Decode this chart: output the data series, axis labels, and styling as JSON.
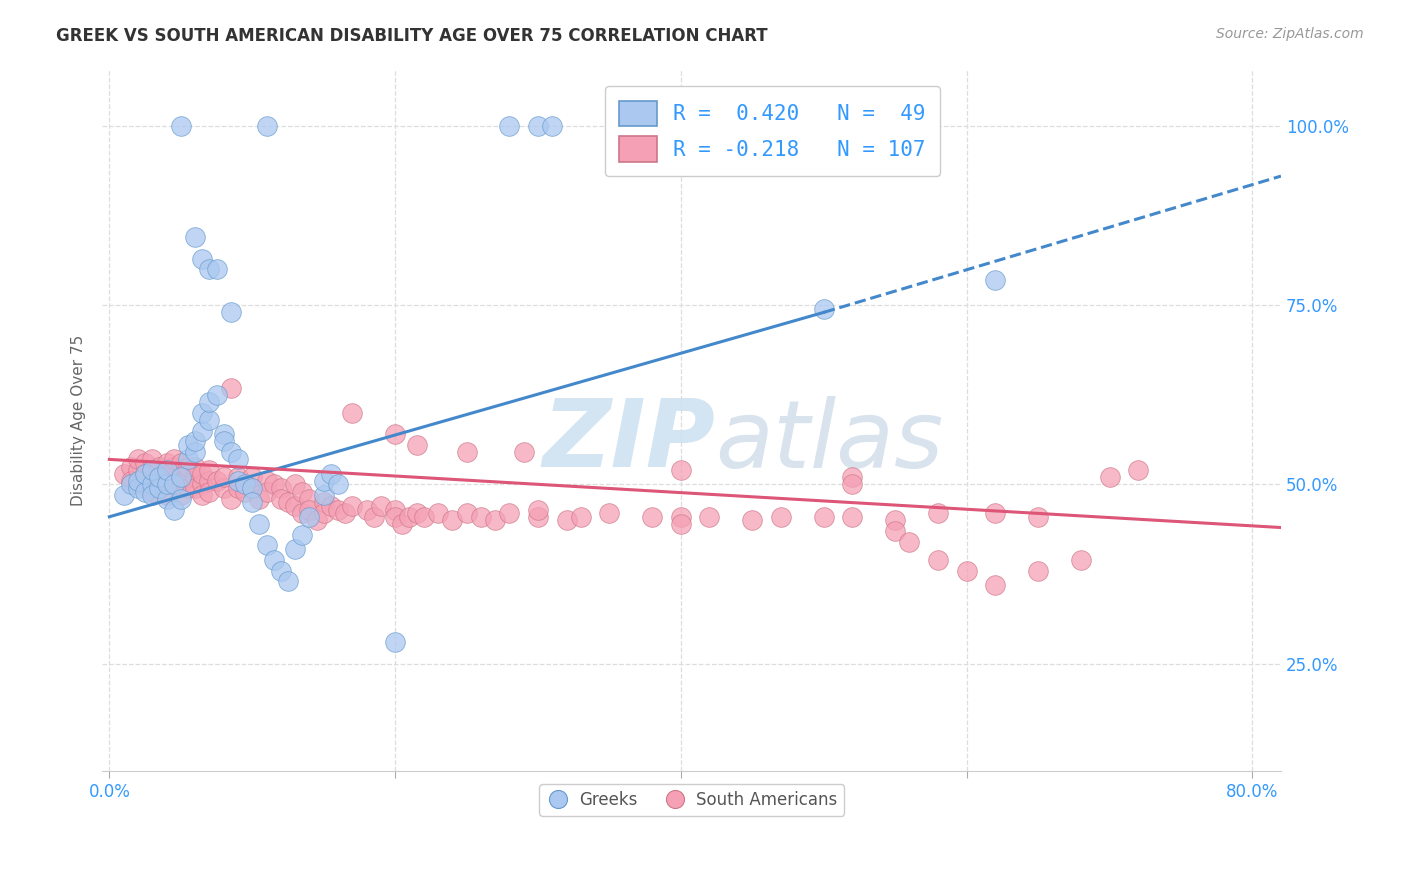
{
  "title": "GREEK VS SOUTH AMERICAN DISABILITY AGE OVER 75 CORRELATION CHART",
  "source": "Source: ZipAtlas.com",
  "ylabel": "Disability Age Over 75",
  "ytick_labels": [
    "25.0%",
    "50.0%",
    "75.0%",
    "100.0%"
  ],
  "ytick_positions": [
    0.25,
    0.5,
    0.75,
    1.0
  ],
  "xtick_positions": [
    0.0,
    0.2,
    0.4,
    0.6,
    0.8
  ],
  "xtick_labels": [
    "0.0%",
    "",
    "",
    "",
    "80.0%"
  ],
  "xlim": [
    -0.005,
    0.82
  ],
  "ylim": [
    0.1,
    1.08
  ],
  "greek_R": 0.42,
  "greek_N": 49,
  "sa_R": -0.218,
  "sa_N": 107,
  "greek_color": "#aac8f0",
  "sa_color": "#f5a0b5",
  "greek_edge_color": "#6699cc",
  "sa_edge_color": "#cc7788",
  "greek_line_color": "#4488cc",
  "sa_line_color": "#dd5577",
  "watermark_color": "#cce0f0",
  "legend_text_color": "#3399ff",
  "tick_color": "#3399ff",
  "ylabel_color": "#666666",
  "title_color": "#333333",
  "source_color": "#999999",
  "grid_color": "#dddddd",
  "greek_trendline_solid": [
    [
      0.0,
      0.455
    ],
    [
      0.5,
      0.74
    ]
  ],
  "greek_trendline_dashed": [
    [
      0.5,
      0.74
    ],
    [
      0.82,
      0.93
    ]
  ],
  "sa_trendline": [
    [
      0.0,
      0.535
    ],
    [
      0.82,
      0.44
    ]
  ],
  "greek_scatter": [
    [
      0.01,
      0.485
    ],
    [
      0.015,
      0.5
    ],
    [
      0.02,
      0.495
    ],
    [
      0.02,
      0.505
    ],
    [
      0.025,
      0.49
    ],
    [
      0.025,
      0.515
    ],
    [
      0.03,
      0.5
    ],
    [
      0.03,
      0.485
    ],
    [
      0.03,
      0.52
    ],
    [
      0.035,
      0.495
    ],
    [
      0.035,
      0.51
    ],
    [
      0.04,
      0.48
    ],
    [
      0.04,
      0.5
    ],
    [
      0.04,
      0.52
    ],
    [
      0.045,
      0.5
    ],
    [
      0.045,
      0.465
    ],
    [
      0.05,
      0.48
    ],
    [
      0.05,
      0.51
    ],
    [
      0.055,
      0.535
    ],
    [
      0.055,
      0.555
    ],
    [
      0.06,
      0.545
    ],
    [
      0.06,
      0.56
    ],
    [
      0.065,
      0.575
    ],
    [
      0.065,
      0.6
    ],
    [
      0.07,
      0.59
    ],
    [
      0.07,
      0.615
    ],
    [
      0.075,
      0.625
    ],
    [
      0.08,
      0.57
    ],
    [
      0.08,
      0.56
    ],
    [
      0.085,
      0.545
    ],
    [
      0.09,
      0.535
    ],
    [
      0.09,
      0.505
    ],
    [
      0.095,
      0.5
    ],
    [
      0.1,
      0.495
    ],
    [
      0.1,
      0.475
    ],
    [
      0.105,
      0.445
    ],
    [
      0.11,
      0.415
    ],
    [
      0.115,
      0.395
    ],
    [
      0.12,
      0.38
    ],
    [
      0.125,
      0.365
    ],
    [
      0.13,
      0.41
    ],
    [
      0.135,
      0.43
    ],
    [
      0.14,
      0.455
    ],
    [
      0.15,
      0.485
    ],
    [
      0.15,
      0.505
    ],
    [
      0.155,
      0.515
    ],
    [
      0.16,
      0.5
    ],
    [
      0.2,
      0.28
    ],
    [
      0.5,
      0.745
    ]
  ],
  "greek_scatter_high": [
    [
      0.05,
      1.0
    ],
    [
      0.11,
      1.0
    ],
    [
      0.28,
      1.0
    ],
    [
      0.3,
      1.0
    ],
    [
      0.31,
      1.0
    ],
    [
      0.62,
      0.785
    ]
  ],
  "greek_scatter_highish": [
    [
      0.06,
      0.845
    ],
    [
      0.065,
      0.815
    ],
    [
      0.07,
      0.8
    ],
    [
      0.075,
      0.8
    ],
    [
      0.085,
      0.74
    ]
  ],
  "sa_scatter": [
    [
      0.01,
      0.515
    ],
    [
      0.015,
      0.525
    ],
    [
      0.015,
      0.505
    ],
    [
      0.02,
      0.52
    ],
    [
      0.02,
      0.5
    ],
    [
      0.02,
      0.535
    ],
    [
      0.025,
      0.515
    ],
    [
      0.025,
      0.5
    ],
    [
      0.025,
      0.53
    ],
    [
      0.03,
      0.52
    ],
    [
      0.03,
      0.505
    ],
    [
      0.03,
      0.535
    ],
    [
      0.03,
      0.49
    ],
    [
      0.035,
      0.51
    ],
    [
      0.035,
      0.525
    ],
    [
      0.035,
      0.495
    ],
    [
      0.04,
      0.515
    ],
    [
      0.04,
      0.5
    ],
    [
      0.04,
      0.53
    ],
    [
      0.04,
      0.485
    ],
    [
      0.045,
      0.51
    ],
    [
      0.045,
      0.525
    ],
    [
      0.045,
      0.5
    ],
    [
      0.045,
      0.535
    ],
    [
      0.05,
      0.515
    ],
    [
      0.05,
      0.5
    ],
    [
      0.05,
      0.53
    ],
    [
      0.05,
      0.485
    ],
    [
      0.055,
      0.51
    ],
    [
      0.055,
      0.525
    ],
    [
      0.055,
      0.495
    ],
    [
      0.06,
      0.51
    ],
    [
      0.06,
      0.495
    ],
    [
      0.06,
      0.525
    ],
    [
      0.065,
      0.5
    ],
    [
      0.065,
      0.515
    ],
    [
      0.065,
      0.485
    ],
    [
      0.07,
      0.505
    ],
    [
      0.07,
      0.52
    ],
    [
      0.07,
      0.49
    ],
    [
      0.075,
      0.505
    ],
    [
      0.08,
      0.495
    ],
    [
      0.08,
      0.51
    ],
    [
      0.085,
      0.48
    ],
    [
      0.09,
      0.495
    ],
    [
      0.09,
      0.51
    ],
    [
      0.095,
      0.49
    ],
    [
      0.1,
      0.495
    ],
    [
      0.1,
      0.51
    ],
    [
      0.105,
      0.48
    ],
    [
      0.11,
      0.505
    ],
    [
      0.11,
      0.49
    ],
    [
      0.115,
      0.5
    ],
    [
      0.12,
      0.495
    ],
    [
      0.12,
      0.48
    ],
    [
      0.125,
      0.475
    ],
    [
      0.13,
      0.5
    ],
    [
      0.13,
      0.47
    ],
    [
      0.135,
      0.49
    ],
    [
      0.135,
      0.46
    ],
    [
      0.14,
      0.48
    ],
    [
      0.14,
      0.465
    ],
    [
      0.145,
      0.45
    ],
    [
      0.15,
      0.475
    ],
    [
      0.15,
      0.46
    ],
    [
      0.155,
      0.47
    ],
    [
      0.16,
      0.465
    ],
    [
      0.165,
      0.46
    ],
    [
      0.17,
      0.47
    ],
    [
      0.18,
      0.465
    ],
    [
      0.185,
      0.455
    ],
    [
      0.19,
      0.47
    ],
    [
      0.2,
      0.465
    ],
    [
      0.2,
      0.455
    ],
    [
      0.205,
      0.445
    ],
    [
      0.21,
      0.455
    ],
    [
      0.215,
      0.46
    ],
    [
      0.22,
      0.455
    ],
    [
      0.23,
      0.46
    ],
    [
      0.24,
      0.45
    ],
    [
      0.25,
      0.46
    ],
    [
      0.26,
      0.455
    ],
    [
      0.27,
      0.45
    ],
    [
      0.28,
      0.46
    ],
    [
      0.3,
      0.455
    ],
    [
      0.3,
      0.465
    ],
    [
      0.32,
      0.45
    ],
    [
      0.33,
      0.455
    ],
    [
      0.35,
      0.46
    ],
    [
      0.38,
      0.455
    ],
    [
      0.4,
      0.455
    ],
    [
      0.4,
      0.445
    ],
    [
      0.42,
      0.455
    ],
    [
      0.45,
      0.45
    ],
    [
      0.47,
      0.455
    ],
    [
      0.5,
      0.455
    ],
    [
      0.52,
      0.455
    ],
    [
      0.55,
      0.45
    ],
    [
      0.58,
      0.46
    ],
    [
      0.62,
      0.46
    ],
    [
      0.65,
      0.455
    ],
    [
      0.7,
      0.51
    ]
  ],
  "sa_scatter_special": [
    [
      0.085,
      0.635
    ],
    [
      0.17,
      0.6
    ],
    [
      0.2,
      0.57
    ],
    [
      0.215,
      0.555
    ],
    [
      0.25,
      0.545
    ],
    [
      0.29,
      0.545
    ],
    [
      0.4,
      0.52
    ],
    [
      0.52,
      0.51
    ],
    [
      0.52,
      0.5
    ],
    [
      0.55,
      0.435
    ],
    [
      0.56,
      0.42
    ],
    [
      0.58,
      0.395
    ],
    [
      0.6,
      0.38
    ],
    [
      0.62,
      0.36
    ],
    [
      0.65,
      0.38
    ],
    [
      0.68,
      0.395
    ],
    [
      0.72,
      0.52
    ]
  ]
}
